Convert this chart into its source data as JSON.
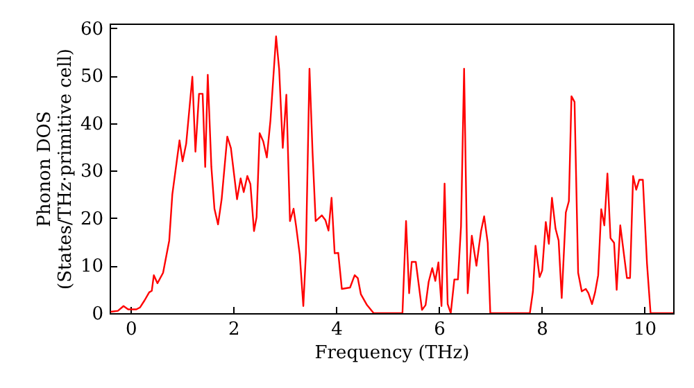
{
  "chart_data": {
    "type": "line",
    "xlabel": "Frequency (THz)",
    "ylabel": "Phonon DOS\n(States/THz·primitive cell)",
    "xlim": [
      -0.41,
      10.56
    ],
    "ylim": [
      0,
      61
    ],
    "xticks": [
      0,
      2,
      4,
      6,
      8,
      10
    ],
    "yticks": [
      0,
      10,
      20,
      30,
      40,
      50,
      60
    ],
    "x": [
      -0.39,
      -0.25,
      -0.14,
      -0.05,
      0.11,
      0.18,
      0.27,
      0.36,
      0.41,
      0.45,
      0.52,
      0.63,
      0.75,
      0.81,
      0.95,
      1.01,
      1.08,
      1.2,
      1.26,
      1.33,
      1.4,
      1.45,
      1.5,
      1.57,
      1.63,
      1.7,
      1.77,
      1.88,
      1.95,
      2.07,
      2.14,
      2.2,
      2.27,
      2.33,
      2.4,
      2.45,
      2.51,
      2.58,
      2.65,
      2.72,
      2.83,
      2.89,
      2.96,
      3.03,
      3.1,
      3.17,
      3.22,
      3.29,
      3.36,
      3.41,
      3.48,
      3.54,
      3.6,
      3.72,
      3.79,
      3.85,
      3.91,
      3.97,
      4.04,
      4.11,
      4.27,
      4.36,
      4.42,
      4.48,
      4.6,
      4.73,
      5.29,
      5.36,
      5.42,
      5.47,
      5.55,
      5.67,
      5.74,
      5.8,
      5.87,
      5.93,
      5.99,
      6.05,
      6.11,
      6.17,
      6.23,
      6.3,
      6.37,
      6.43,
      6.49,
      6.56,
      6.64,
      6.73,
      6.82,
      6.88,
      6.95,
      7.0,
      7.77,
      7.83,
      7.88,
      7.96,
      8.01,
      8.08,
      8.14,
      8.2,
      8.27,
      8.33,
      8.39,
      8.47,
      8.53,
      8.58,
      8.64,
      8.71,
      8.78,
      8.86,
      8.91,
      8.98,
      9.04,
      9.1,
      9.16,
      9.22,
      9.28,
      9.34,
      9.41,
      9.46,
      9.53,
      9.66,
      9.72,
      9.78,
      9.84,
      9.9,
      9.97,
      10.05,
      10.12,
      10.56
    ],
    "series": [
      {
        "color": "#ff0000",
        "values": [
          0.3,
          0.5,
          1.5,
          0.8,
          0.8,
          1.2,
          2.7,
          4.4,
          4.7,
          8,
          6.3,
          8.5,
          15.3,
          25,
          36.4,
          32,
          35.7,
          49.8,
          34,
          46.2,
          46.2,
          30.8,
          50.2,
          30.8,
          22,
          18.7,
          24,
          37.2,
          34.8,
          24,
          28.4,
          25.5,
          28.9,
          27.2,
          17.3,
          20.2,
          37.9,
          36.2,
          32.8,
          40.6,
          58.3,
          51.3,
          34.8,
          46,
          19.4,
          22,
          18.3,
          12.4,
          1.5,
          12.4,
          51.5,
          33.8,
          19.4,
          20.6,
          19.6,
          17.4,
          24.3,
          12.6,
          12.7,
          5.1,
          5.4,
          8,
          7.4,
          4,
          1.7,
          0,
          0,
          19.4,
          4.2,
          10.8,
          10.8,
          0.7,
          1.7,
          6.6,
          9.5,
          6.8,
          10.7,
          1.5,
          27.3,
          1.9,
          0,
          7.1,
          7.1,
          18.3,
          51.5,
          4.2,
          16.3,
          10,
          17.3,
          20.4,
          14.8,
          0,
          0,
          4.6,
          14.2,
          7.6,
          9,
          19.2,
          14.6,
          24.3,
          17.8,
          15.3,
          3.2,
          21.2,
          23.6,
          45.7,
          44.5,
          8.5,
          4.6,
          5.1,
          4.2,
          1.9,
          4.4,
          8,
          21.9,
          18.5,
          29.4,
          15.8,
          14.8,
          4.9,
          18.5,
          7.4,
          7.4,
          28.9,
          26,
          28.1,
          28.1,
          10.5,
          0,
          0
        ]
      }
    ]
  }
}
